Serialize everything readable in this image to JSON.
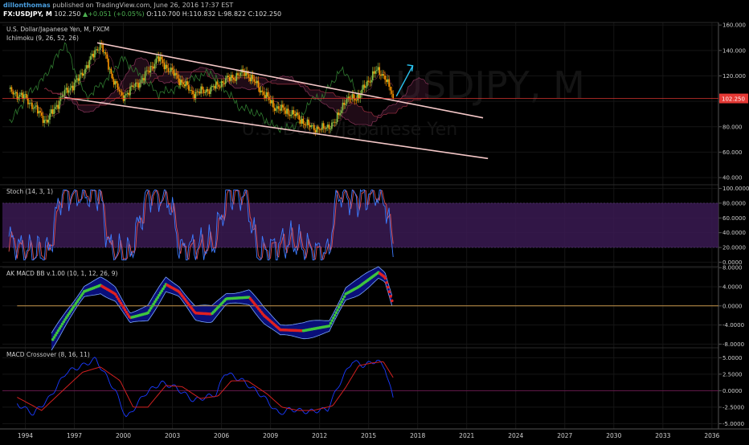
{
  "header": {
    "author": "dillonthomas",
    "published": "published on TradingView.com, June 26, 2016 17:37 EST",
    "symbol": "FX:USDJPY, M",
    "last": "102.250",
    "change": "+0.051 (+0.05%)",
    "open": "O:110.700",
    "high": "H:110.832",
    "low": "L:98.822",
    "close": "C:102.250"
  },
  "watermark": {
    "line1": "USDJPY, M",
    "line2": "U.S. Dollar/Japanese Yen"
  },
  "colors": {
    "background": "#000000",
    "candle_up": "#8bc34a",
    "candle_down": "#ff9800",
    "channel": "#f4c7c7",
    "price_line": "#e53935",
    "price_tag": "#e53935",
    "stoch_band": "#3a1a52",
    "k_line": "#3d7cff",
    "d_line": "#e05050",
    "macd_bb_band": "#0a1080",
    "arrow": "#29c3f0"
  },
  "chart_data": [
    {
      "id": "price",
      "type": "candlestick",
      "title": "U.S. Dollar/Japanese Yen, M, FXCM",
      "indicator_label": "Ichimoku (9, 26, 52, 26)",
      "ylim": [
        35,
        162
      ],
      "yticks": [
        "40.000",
        "60.000",
        "80.000",
        "100.000",
        "120.000",
        "140.000",
        "160.000"
      ],
      "ytick_values": [
        40,
        60,
        80,
        100,
        120,
        140,
        160
      ],
      "last_price_label": "102.250",
      "last_price": 102.25,
      "price_anchors": [
        [
          1993,
          108
        ],
        [
          1994,
          103
        ],
        [
          1995.3,
          84
        ],
        [
          1996.3,
          105
        ],
        [
          1997.3,
          118
        ],
        [
          1998.6,
          146
        ],
        [
          1999.3,
          120
        ],
        [
          1999.9,
          103
        ],
        [
          2001.2,
          118
        ],
        [
          2002.1,
          134
        ],
        [
          2003.2,
          120
        ],
        [
          2004.3,
          106
        ],
        [
          2005.4,
          110
        ],
        [
          2006.3,
          117
        ],
        [
          2007.5,
          123
        ],
        [
          2008.6,
          106
        ],
        [
          2009.2,
          96
        ],
        [
          2010.4,
          90
        ],
        [
          2011.4,
          80
        ],
        [
          2012.2,
          78
        ],
        [
          2013.0,
          84
        ],
        [
          2013.5,
          100
        ],
        [
          2014.4,
          104
        ],
        [
          2015.4,
          124
        ],
        [
          2016.0,
          120
        ],
        [
          2016.5,
          102.25
        ]
      ],
      "channel_upper": [
        [
          1998.4,
          146
        ],
        [
          2022,
          87
        ]
      ],
      "channel_lower": [
        [
          1996.4,
          103
        ],
        [
          2022.3,
          55
        ]
      ],
      "forecast_arrow": [
        [
          2016.7,
          104
        ],
        [
          2017.7,
          128
        ]
      ]
    },
    {
      "id": "stoch",
      "type": "line",
      "indicator_label": "Stoch (14, 3, 1)",
      "ylim": [
        -5,
        105
      ],
      "yticks": [
        "0.0000",
        "20.0000",
        "40.0000",
        "60.0000",
        "80.0000",
        "100.0000"
      ],
      "ytick_values": [
        0,
        20,
        40,
        60,
        80,
        100
      ],
      "band": [
        20,
        80
      ],
      "series": [
        {
          "values_anchors": [
            [
              1993,
              30
            ],
            [
              1993.9,
              15
            ],
            [
              1995.4,
              12
            ],
            [
              1996.2,
              95
            ],
            [
              1997.3,
              92
            ],
            [
              1998.5,
              95
            ],
            [
              1999.2,
              15
            ],
            [
              2000.4,
              10
            ],
            [
              2001.5,
              95
            ],
            [
              2002.8,
              85
            ],
            [
              2003.5,
              15
            ],
            [
              2005.5,
              25
            ],
            [
              2006.4,
              95
            ],
            [
              2007.5,
              92
            ],
            [
              2008.2,
              10
            ],
            [
              2010.3,
              30
            ],
            [
              2011.5,
              15
            ],
            [
              2012.5,
              10
            ],
            [
              2013.1,
              95
            ],
            [
              2014.2,
              85
            ],
            [
              2015.3,
              95
            ],
            [
              2016.0,
              85
            ],
            [
              2016.5,
              12
            ]
          ]
        }
      ]
    },
    {
      "id": "macd_bb",
      "type": "line",
      "indicator_label": "AK MACD BB v.1.00 (10, 1, 12, 26, 9)",
      "ylim": [
        -8.6,
        8.2
      ],
      "yticks": [
        "-8.0000",
        "-4.0000",
        "0.0000",
        "4.0000",
        "8.0000"
      ],
      "ytick_values": [
        -8,
        -4,
        0,
        4,
        8
      ],
      "zero_line": 0,
      "values_anchors": [
        [
          1995.6,
          -7.5
        ],
        [
          1996.5,
          -2.5
        ],
        [
          1997.6,
          3
        ],
        [
          1998.6,
          4.3
        ],
        [
          1999.5,
          2.5
        ],
        [
          2000.4,
          -2.5
        ],
        [
          2001.5,
          -1.5
        ],
        [
          2002.6,
          4.5
        ],
        [
          2003.4,
          3
        ],
        [
          2004.4,
          -1.5
        ],
        [
          2005.4,
          -1.7
        ],
        [
          2006.3,
          1.5
        ],
        [
          2007.7,
          1.8
        ],
        [
          2008.6,
          -2
        ],
        [
          2009.6,
          -5
        ],
        [
          2011.0,
          -5.2
        ],
        [
          2012.6,
          -4.2
        ],
        [
          2013.6,
          2.5
        ],
        [
          2014.4,
          4
        ],
        [
          2015.6,
          7
        ],
        [
          2016.0,
          6
        ],
        [
          2016.5,
          0.3
        ]
      ]
    },
    {
      "id": "macd_crossover",
      "type": "line",
      "indicator_label": "MACD Crossover (8, 16, 11)",
      "ylim": [
        -5.8,
        6.5
      ],
      "yticks": [
        "-5.0000",
        "-2.5000",
        "0.0000",
        "2.5000",
        "5.0000"
      ],
      "ytick_values": [
        -5,
        -2.5,
        0,
        2.5,
        5
      ],
      "series": [
        {
          "values_anchors": [
            [
              1993.5,
              -2
            ],
            [
              1994.5,
              -3.5
            ],
            [
              1995.5,
              -1
            ],
            [
              1996.5,
              2.8
            ],
            [
              1997.5,
              3.8
            ],
            [
              1998.3,
              4.8
            ],
            [
              1999.5,
              0
            ],
            [
              2000.2,
              -4.2
            ],
            [
              2001.3,
              -0.5
            ],
            [
              2002.3,
              1.2
            ],
            [
              2003.2,
              0.5
            ],
            [
              2004.3,
              -1.5
            ],
            [
              2005.7,
              -0.5
            ],
            [
              2006.2,
              2.8
            ],
            [
              2007.3,
              1.5
            ],
            [
              2008.6,
              -1
            ],
            [
              2009.5,
              -3.5
            ],
            [
              2010.2,
              -2.8
            ],
            [
              2011.3,
              -3.2
            ],
            [
              2012.5,
              -2.8
            ],
            [
              2013.2,
              1
            ],
            [
              2014.0,
              4.5
            ],
            [
              2014.7,
              3.8
            ],
            [
              2015.5,
              4.6
            ],
            [
              2016.0,
              3.5
            ],
            [
              2016.5,
              -1.2
            ]
          ]
        },
        {
          "values_anchors": [
            [
              1993.5,
              -1
            ],
            [
              1995.0,
              -3
            ],
            [
              1996.5,
              0.5
            ],
            [
              1997.5,
              2.8
            ],
            [
              1998.6,
              3.6
            ],
            [
              1999.8,
              1.5
            ],
            [
              2000.6,
              -2.5
            ],
            [
              2001.5,
              -2.5
            ],
            [
              2002.6,
              0.8
            ],
            [
              2003.6,
              0.6
            ],
            [
              2004.7,
              -1.2
            ],
            [
              2005.8,
              -0.8
            ],
            [
              2006.6,
              1.5
            ],
            [
              2007.6,
              1.5
            ],
            [
              2008.8,
              -0.5
            ],
            [
              2009.7,
              -2.5
            ],
            [
              2010.7,
              -3
            ],
            [
              2011.6,
              -3
            ],
            [
              2012.8,
              -2.3
            ],
            [
              2013.6,
              0.5
            ],
            [
              2014.4,
              3.8
            ],
            [
              2015.2,
              4.2
            ],
            [
              2015.9,
              4.4
            ],
            [
              2016.5,
              2
            ]
          ]
        }
      ]
    }
  ],
  "xaxis": {
    "range": [
      1992.6,
      2036.4
    ],
    "labels": [
      "1994",
      "1997",
      "2000",
      "2003",
      "2006",
      "2009",
      "2012",
      "2015",
      "2018",
      "2021",
      "2024",
      "2027",
      "2030",
      "2033",
      "2036"
    ],
    "values": [
      1994,
      1997,
      2000,
      2003,
      2006,
      2009,
      2012,
      2015,
      2018,
      2021,
      2024,
      2027,
      2030,
      2033,
      2036
    ]
  }
}
